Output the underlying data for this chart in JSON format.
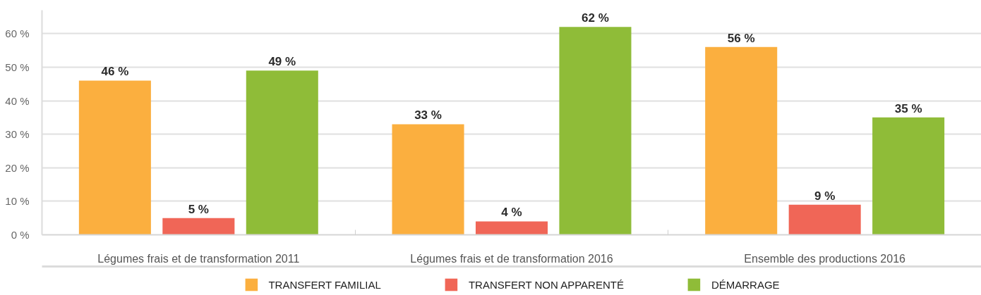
{
  "chart_data": {
    "type": "bar",
    "categories": [
      "Légumes frais et de transformation 2011",
      "Légumes frais et de transformation 2016",
      "Ensemble des productions 2016"
    ],
    "series": [
      {
        "name": "TRANSFERT FAMILIAL",
        "color": "#fbaf3f",
        "values": [
          46,
          33,
          56
        ],
        "value_labels": [
          "46 %",
          "33 %",
          "56 %"
        ]
      },
      {
        "name": "TRANSFERT NON APPARENTÉ",
        "color": "#f06657",
        "values": [
          5,
          4,
          9
        ],
        "value_labels": [
          "5 %",
          "4 %",
          "9 %"
        ]
      },
      {
        "name": "DÉMARRAGE",
        "color": "#8fbc38",
        "values": [
          49,
          62,
          35
        ],
        "value_labels": [
          "49 %",
          "62 %",
          "35 %"
        ]
      }
    ],
    "ylim": [
      0,
      67
    ],
    "yticks": [
      {
        "value": 0,
        "label": "0 %"
      },
      {
        "value": 10,
        "label": "10 %"
      },
      {
        "value": 20,
        "label": "20 %"
      },
      {
        "value": 30,
        "label": "30 %"
      },
      {
        "value": 40,
        "label": "40 %"
      },
      {
        "value": 50,
        "label": "50 %"
      },
      {
        "value": 60,
        "label": "60 %"
      }
    ],
    "grid": "y",
    "legend": "bottom"
  }
}
